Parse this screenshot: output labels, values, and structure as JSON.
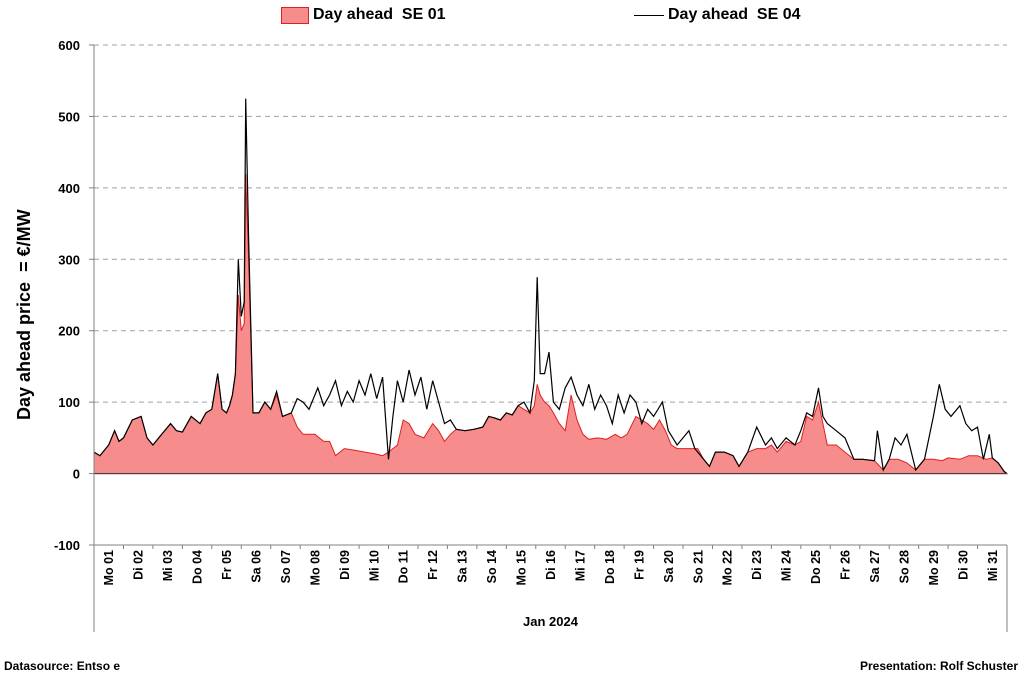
{
  "chart_data": {
    "type": "area+line",
    "title": "",
    "ylabel": "Day ahead price  = €/MW",
    "xlabel": "Jan 2024",
    "ylim": [
      -100,
      600
    ],
    "yticks": [
      -100,
      0,
      100,
      200,
      300,
      400,
      500,
      600
    ],
    "grid": "horizontal dashed",
    "legend_position": "top",
    "colors": {
      "area_fill": "#f78c8c",
      "area_stroke": "#e02020",
      "line": "#000000",
      "grid": "#a0a0a0"
    },
    "day_labels": [
      "Mo 01",
      "Di 02",
      "Mi 03",
      "Do 04",
      "Fr 05",
      "Sa 06",
      "So 07",
      "Mo 08",
      "Di 09",
      "Mi 10",
      "Do 11",
      "Fr 12",
      "Sa 13",
      "So 14",
      "Mo 15",
      "Di 16",
      "Mi 17",
      "Do 18",
      "Fr 19",
      "Sa 20",
      "So 21",
      "Mo 22",
      "Di 23",
      "Mi 24",
      "Do 25",
      "Fr 26",
      "Sa 27",
      "So 28",
      "Mo 29",
      "Di 30",
      "Mi 31"
    ],
    "series": [
      {
        "name": "Day ahead  SE 01",
        "kind": "area",
        "points": [
          [
            0,
            30
          ],
          [
            0.2,
            25
          ],
          [
            0.5,
            40
          ],
          [
            0.7,
            60
          ],
          [
            0.85,
            45
          ],
          [
            1.0,
            50
          ],
          [
            1.3,
            75
          ],
          [
            1.6,
            80
          ],
          [
            1.8,
            50
          ],
          [
            2.0,
            40
          ],
          [
            2.3,
            55
          ],
          [
            2.6,
            70
          ],
          [
            2.8,
            60
          ],
          [
            3.0,
            58
          ],
          [
            3.3,
            80
          ],
          [
            3.6,
            70
          ],
          [
            3.8,
            85
          ],
          [
            4.0,
            90
          ],
          [
            4.2,
            140
          ],
          [
            4.35,
            90
          ],
          [
            4.5,
            85
          ],
          [
            4.6,
            95
          ],
          [
            4.7,
            110
          ],
          [
            4.8,
            140
          ],
          [
            4.9,
            250
          ],
          [
            5.0,
            200
          ],
          [
            5.1,
            210
          ],
          [
            5.15,
            420
          ],
          [
            5.25,
            300
          ],
          [
            5.4,
            85
          ],
          [
            5.6,
            85
          ],
          [
            5.8,
            100
          ],
          [
            6.0,
            90
          ],
          [
            6.2,
            110
          ],
          [
            6.4,
            80
          ],
          [
            6.7,
            85
          ],
          [
            6.9,
            65
          ],
          [
            7.1,
            55
          ],
          [
            7.5,
            55
          ],
          [
            7.8,
            45
          ],
          [
            8.0,
            45
          ],
          [
            8.2,
            25
          ],
          [
            8.5,
            35
          ],
          [
            8.8,
            33
          ],
          [
            9.2,
            30
          ],
          [
            9.5,
            28
          ],
          [
            9.8,
            25
          ],
          [
            10.0,
            30
          ],
          [
            10.3,
            40
          ],
          [
            10.5,
            75
          ],
          [
            10.7,
            70
          ],
          [
            10.9,
            55
          ],
          [
            11.2,
            50
          ],
          [
            11.5,
            70
          ],
          [
            11.7,
            60
          ],
          [
            11.9,
            45
          ],
          [
            12.1,
            55
          ],
          [
            12.3,
            62
          ],
          [
            12.6,
            60
          ],
          [
            12.9,
            62
          ],
          [
            13.2,
            65
          ],
          [
            13.4,
            80
          ],
          [
            13.6,
            78
          ],
          [
            13.8,
            75
          ],
          [
            14.0,
            85
          ],
          [
            14.2,
            82
          ],
          [
            14.4,
            95
          ],
          [
            14.6,
            90
          ],
          [
            14.8,
            85
          ],
          [
            14.95,
            95
          ],
          [
            15.05,
            125
          ],
          [
            15.15,
            110
          ],
          [
            15.3,
            100
          ],
          [
            15.45,
            95
          ],
          [
            15.6,
            85
          ],
          [
            15.8,
            70
          ],
          [
            16.0,
            60
          ],
          [
            16.2,
            110
          ],
          [
            16.4,
            75
          ],
          [
            16.6,
            55
          ],
          [
            16.8,
            48
          ],
          [
            17.1,
            50
          ],
          [
            17.4,
            48
          ],
          [
            17.7,
            55
          ],
          [
            17.9,
            50
          ],
          [
            18.1,
            55
          ],
          [
            18.4,
            80
          ],
          [
            18.6,
            75
          ],
          [
            18.8,
            70
          ],
          [
            19.0,
            62
          ],
          [
            19.2,
            75
          ],
          [
            19.4,
            60
          ],
          [
            19.6,
            40
          ],
          [
            19.8,
            35
          ],
          [
            20.2,
            35
          ],
          [
            20.5,
            35
          ],
          [
            20.7,
            20
          ],
          [
            20.9,
            10
          ],
          [
            21.1,
            30
          ],
          [
            21.4,
            30
          ],
          [
            21.7,
            25
          ],
          [
            21.9,
            10
          ],
          [
            22.2,
            30
          ],
          [
            22.5,
            35
          ],
          [
            22.8,
            35
          ],
          [
            23.0,
            40
          ],
          [
            23.2,
            30
          ],
          [
            23.5,
            45
          ],
          [
            23.8,
            40
          ],
          [
            24.0,
            45
          ],
          [
            24.2,
            80
          ],
          [
            24.4,
            75
          ],
          [
            24.6,
            100
          ],
          [
            24.75,
            70
          ],
          [
            24.9,
            40
          ],
          [
            25.2,
            40
          ],
          [
            25.5,
            30
          ],
          [
            25.8,
            20
          ],
          [
            26.1,
            20
          ],
          [
            26.5,
            18
          ],
          [
            26.8,
            5
          ],
          [
            27.0,
            20
          ],
          [
            27.3,
            20
          ],
          [
            27.6,
            15
          ],
          [
            27.9,
            5
          ],
          [
            28.2,
            20
          ],
          [
            28.5,
            20
          ],
          [
            28.8,
            18
          ],
          [
            29.0,
            22
          ],
          [
            29.4,
            20
          ],
          [
            29.7,
            25
          ],
          [
            30.0,
            25
          ],
          [
            30.3,
            20
          ],
          [
            30.5,
            22
          ],
          [
            30.7,
            15
          ],
          [
            30.9,
            3
          ],
          [
            31.0,
            0
          ]
        ]
      },
      {
        "name": "Day ahead  SE 04",
        "kind": "line",
        "points": [
          [
            0,
            30
          ],
          [
            0.2,
            25
          ],
          [
            0.5,
            40
          ],
          [
            0.7,
            60
          ],
          [
            0.85,
            45
          ],
          [
            1.0,
            50
          ],
          [
            1.3,
            75
          ],
          [
            1.6,
            80
          ],
          [
            1.8,
            50
          ],
          [
            2.0,
            40
          ],
          [
            2.3,
            55
          ],
          [
            2.6,
            70
          ],
          [
            2.8,
            60
          ],
          [
            3.0,
            58
          ],
          [
            3.3,
            80
          ],
          [
            3.6,
            70
          ],
          [
            3.8,
            85
          ],
          [
            4.0,
            90
          ],
          [
            4.2,
            140
          ],
          [
            4.35,
            90
          ],
          [
            4.5,
            85
          ],
          [
            4.6,
            95
          ],
          [
            4.7,
            110
          ],
          [
            4.8,
            140
          ],
          [
            4.9,
            300
          ],
          [
            5.0,
            220
          ],
          [
            5.1,
            240
          ],
          [
            5.15,
            525
          ],
          [
            5.25,
            330
          ],
          [
            5.4,
            85
          ],
          [
            5.6,
            85
          ],
          [
            5.8,
            100
          ],
          [
            6.0,
            90
          ],
          [
            6.2,
            115
          ],
          [
            6.4,
            80
          ],
          [
            6.7,
            85
          ],
          [
            6.9,
            105
          ],
          [
            7.1,
            100
          ],
          [
            7.3,
            90
          ],
          [
            7.6,
            120
          ],
          [
            7.8,
            95
          ],
          [
            8.0,
            110
          ],
          [
            8.2,
            130
          ],
          [
            8.4,
            95
          ],
          [
            8.6,
            115
          ],
          [
            8.8,
            100
          ],
          [
            9.0,
            130
          ],
          [
            9.2,
            110
          ],
          [
            9.4,
            140
          ],
          [
            9.6,
            105
          ],
          [
            9.8,
            135
          ],
          [
            10.0,
            20
          ],
          [
            10.15,
            80
          ],
          [
            10.3,
            130
          ],
          [
            10.5,
            100
          ],
          [
            10.7,
            145
          ],
          [
            10.9,
            110
          ],
          [
            11.1,
            135
          ],
          [
            11.3,
            90
          ],
          [
            11.5,
            130
          ],
          [
            11.7,
            100
          ],
          [
            11.9,
            70
          ],
          [
            12.1,
            75
          ],
          [
            12.3,
            62
          ],
          [
            12.6,
            60
          ],
          [
            12.9,
            62
          ],
          [
            13.2,
            65
          ],
          [
            13.4,
            80
          ],
          [
            13.6,
            78
          ],
          [
            13.8,
            75
          ],
          [
            14.0,
            85
          ],
          [
            14.2,
            82
          ],
          [
            14.4,
            95
          ],
          [
            14.6,
            100
          ],
          [
            14.8,
            85
          ],
          [
            14.95,
            130
          ],
          [
            15.05,
            275
          ],
          [
            15.15,
            140
          ],
          [
            15.3,
            140
          ],
          [
            15.45,
            170
          ],
          [
            15.6,
            100
          ],
          [
            15.8,
            90
          ],
          [
            16.0,
            120
          ],
          [
            16.2,
            135
          ],
          [
            16.4,
            110
          ],
          [
            16.6,
            95
          ],
          [
            16.8,
            125
          ],
          [
            17.0,
            90
          ],
          [
            17.2,
            110
          ],
          [
            17.4,
            95
          ],
          [
            17.6,
            70
          ],
          [
            17.8,
            110
          ],
          [
            18.0,
            85
          ],
          [
            18.2,
            110
          ],
          [
            18.4,
            100
          ],
          [
            18.6,
            70
          ],
          [
            18.8,
            90
          ],
          [
            19.0,
            80
          ],
          [
            19.3,
            100
          ],
          [
            19.5,
            60
          ],
          [
            19.8,
            40
          ],
          [
            20.2,
            60
          ],
          [
            20.4,
            35
          ],
          [
            20.7,
            20
          ],
          [
            20.9,
            10
          ],
          [
            21.1,
            30
          ],
          [
            21.4,
            30
          ],
          [
            21.7,
            25
          ],
          [
            21.9,
            10
          ],
          [
            22.2,
            30
          ],
          [
            22.5,
            65
          ],
          [
            22.8,
            40
          ],
          [
            23.0,
            50
          ],
          [
            23.2,
            35
          ],
          [
            23.5,
            50
          ],
          [
            23.8,
            40
          ],
          [
            24.0,
            60
          ],
          [
            24.2,
            85
          ],
          [
            24.4,
            80
          ],
          [
            24.6,
            120
          ],
          [
            24.75,
            80
          ],
          [
            24.9,
            70
          ],
          [
            25.2,
            60
          ],
          [
            25.5,
            50
          ],
          [
            25.8,
            20
          ],
          [
            26.1,
            20
          ],
          [
            26.5,
            18
          ],
          [
            26.6,
            60
          ],
          [
            26.8,
            5
          ],
          [
            27.0,
            20
          ],
          [
            27.2,
            50
          ],
          [
            27.4,
            40
          ],
          [
            27.6,
            55
          ],
          [
            27.9,
            5
          ],
          [
            28.2,
            20
          ],
          [
            28.5,
            80
          ],
          [
            28.7,
            125
          ],
          [
            28.9,
            90
          ],
          [
            29.1,
            80
          ],
          [
            29.4,
            95
          ],
          [
            29.6,
            70
          ],
          [
            29.8,
            60
          ],
          [
            30.0,
            65
          ],
          [
            30.2,
            20
          ],
          [
            30.4,
            55
          ],
          [
            30.5,
            22
          ],
          [
            30.7,
            15
          ],
          [
            30.9,
            3
          ],
          [
            31.0,
            0
          ]
        ]
      }
    ]
  },
  "legend": {
    "item1": "Day ahead  SE 01",
    "item2": "Day ahead  SE 04"
  },
  "footer": {
    "left": "Datasource:  Entso e",
    "right": "Presentation: Rolf Schuster"
  }
}
